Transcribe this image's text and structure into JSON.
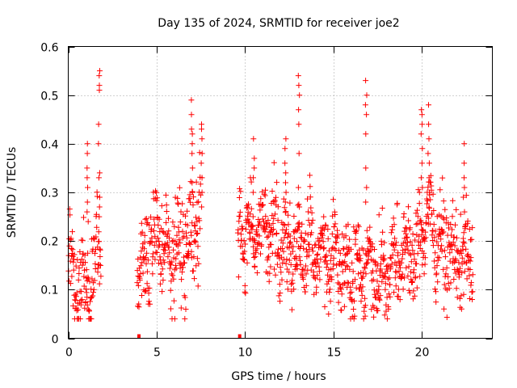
{
  "chart_data": {
    "type": "scatter",
    "title": "Day 135 of 2024, SRMTID for receiver joe2",
    "xlabel": "GPS time / hours",
    "ylabel": "SRMTID / TECUs",
    "xlim": [
      0,
      24
    ],
    "ylim": [
      0,
      0.6
    ],
    "xticks": [
      0,
      5,
      10,
      15,
      20
    ],
    "xtick_labels": [
      "0",
      "5",
      "10",
      "15",
      "20"
    ],
    "yticks": [
      0,
      0.1,
      0.2,
      0.3,
      0.4,
      0.5,
      0.6
    ],
    "ytick_labels": [
      "0",
      "0.1",
      "0.2",
      "0.3",
      "0.4",
      "0.5",
      "0.6"
    ],
    "grid": true,
    "marker": "+",
    "color": "#ff0000",
    "series": [
      {
        "name": "SRMTID",
        "segments": [
          {
            "x_start": 0.0,
            "x_end": 1.85,
            "center": [
              [
                0.0,
                0.16
              ],
              [
                0.3,
                0.12
              ],
              [
                0.8,
                0.13
              ],
              [
                1.3,
                0.1
              ],
              [
                1.6,
                0.17
              ],
              [
                1.85,
                0.2
              ]
            ],
            "spread": 0.045
          },
          {
            "x_start": 3.9,
            "x_end": 7.5,
            "center": [
              [
                3.9,
                0.13
              ],
              [
                4.5,
                0.18
              ],
              [
                5.0,
                0.2
              ],
              [
                5.5,
                0.19
              ],
              [
                6.0,
                0.18
              ],
              [
                6.5,
                0.19
              ],
              [
                7.0,
                0.22
              ],
              [
                7.5,
                0.26
              ]
            ],
            "spread": 0.05
          },
          {
            "x_start": 9.6,
            "x_end": 22.9,
            "center": [
              [
                9.6,
                0.2
              ],
              [
                10.3,
                0.23
              ],
              [
                11.0,
                0.22
              ],
              [
                12.0,
                0.21
              ],
              [
                12.5,
                0.17
              ],
              [
                13.0,
                0.19
              ],
              [
                14.0,
                0.18
              ],
              [
                15.0,
                0.16
              ],
              [
                16.0,
                0.14
              ],
              [
                17.0,
                0.15
              ],
              [
                18.0,
                0.13
              ],
              [
                19.0,
                0.18
              ],
              [
                19.7,
                0.17
              ],
              [
                20.3,
                0.26
              ],
              [
                21.0,
                0.2
              ],
              [
                22.0,
                0.16
              ],
              [
                22.9,
                0.17
              ]
            ],
            "spread": 0.045
          }
        ],
        "spikes": [
          {
            "x": 1.75,
            "values": [
              0.55,
              0.54,
              0.52,
              0.51,
              0.44,
              0.4,
              0.34,
              0.33,
              0.29,
              0.27,
              0.25
            ]
          },
          {
            "x": 1.1,
            "values": [
              0.4,
              0.38,
              0.35,
              0.33,
              0.31,
              0.28,
              0.26,
              0.24
            ]
          },
          {
            "x": 7.0,
            "values": [
              0.49,
              0.46,
              0.43,
              0.42,
              0.4,
              0.38,
              0.35,
              0.32,
              0.3
            ]
          },
          {
            "x": 7.55,
            "values": [
              0.44,
              0.43,
              0.41,
              0.38,
              0.36,
              0.33,
              0.3,
              0.27
            ]
          },
          {
            "x": 10.5,
            "values": [
              0.41,
              0.37,
              0.35,
              0.33,
              0.3
            ]
          },
          {
            "x": 12.3,
            "values": [
              0.41,
              0.39,
              0.36,
              0.34,
              0.32,
              0.3,
              0.28
            ]
          },
          {
            "x": 13.05,
            "values": [
              0.54,
              0.52,
              0.5,
              0.47,
              0.44,
              0.38,
              0.31,
              0.27
            ]
          },
          {
            "x": 16.85,
            "values": [
              0.53,
              0.5,
              0.48,
              0.46,
              0.42,
              0.35,
              0.31,
              0.28
            ]
          },
          {
            "x": 20.0,
            "values": [
              0.47,
              0.46,
              0.44,
              0.42,
              0.39,
              0.36,
              0.33,
              0.31
            ]
          },
          {
            "x": 20.4,
            "values": [
              0.48,
              0.44,
              0.41,
              0.38,
              0.36,
              0.33,
              0.3
            ]
          },
          {
            "x": 22.4,
            "values": [
              0.4,
              0.36,
              0.33,
              0.31,
              0.29,
              0.26
            ]
          }
        ],
        "isolated_points": [
          [
            4.0,
            0.0
          ],
          [
            9.7,
            0.0
          ]
        ]
      }
    ]
  }
}
